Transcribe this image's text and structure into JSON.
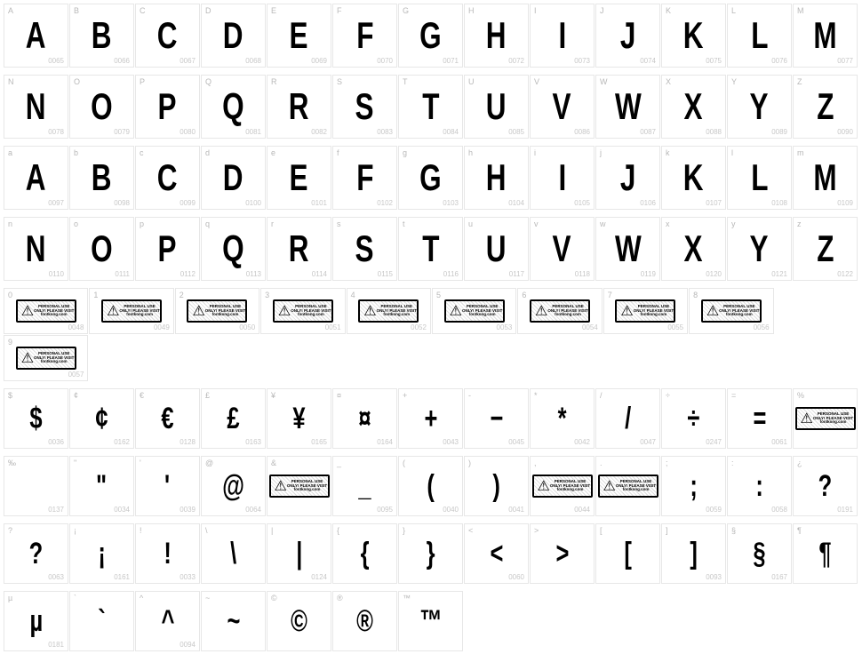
{
  "layout": {
    "cell_border": "#e7e7e7",
    "bg": "#ffffff",
    "key_color": "#b8b8b8",
    "code_color": "#c8c8c8",
    "glyph_color": "#000000"
  },
  "warn_text": "PERSONAL USE ONLY! PLEASE VISIT fontkong.com",
  "rows": [
    {
      "class": "row13",
      "glyph_class": "glyph-big",
      "cells": [
        {
          "key": "A",
          "glyph": "A",
          "code": "0065"
        },
        {
          "key": "B",
          "glyph": "B",
          "code": "0066"
        },
        {
          "key": "C",
          "glyph": "C",
          "code": "0067"
        },
        {
          "key": "D",
          "glyph": "D",
          "code": "0068"
        },
        {
          "key": "E",
          "glyph": "E",
          "code": "0069"
        },
        {
          "key": "F",
          "glyph": "F",
          "code": "0070"
        },
        {
          "key": "G",
          "glyph": "G",
          "code": "0071"
        },
        {
          "key": "H",
          "glyph": "H",
          "code": "0072"
        },
        {
          "key": "I",
          "glyph": "I",
          "code": "0073"
        },
        {
          "key": "J",
          "glyph": "J",
          "code": "0074"
        },
        {
          "key": "K",
          "glyph": "K",
          "code": "0075"
        },
        {
          "key": "L",
          "glyph": "L",
          "code": "0076"
        },
        {
          "key": "M",
          "glyph": "M",
          "code": "0077"
        }
      ]
    },
    {
      "class": "row13",
      "glyph_class": "glyph-big",
      "cells": [
        {
          "key": "N",
          "glyph": "N",
          "code": "0078"
        },
        {
          "key": "O",
          "glyph": "O",
          "code": "0079"
        },
        {
          "key": "P",
          "glyph": "P",
          "code": "0080"
        },
        {
          "key": "Q",
          "glyph": "Q",
          "code": "0081"
        },
        {
          "key": "R",
          "glyph": "R",
          "code": "0082"
        },
        {
          "key": "S",
          "glyph": "S",
          "code": "0083"
        },
        {
          "key": "T",
          "glyph": "T",
          "code": "0084"
        },
        {
          "key": "U",
          "glyph": "U",
          "code": "0085"
        },
        {
          "key": "V",
          "glyph": "V",
          "code": "0086"
        },
        {
          "key": "W",
          "glyph": "W",
          "code": "0087"
        },
        {
          "key": "X",
          "glyph": "X",
          "code": "0088"
        },
        {
          "key": "Y",
          "glyph": "Y",
          "code": "0089"
        },
        {
          "key": "Z",
          "glyph": "Z",
          "code": "0090"
        }
      ]
    },
    {
      "class": "row13",
      "glyph_class": "glyph-big",
      "cells": [
        {
          "key": "a",
          "glyph": "A",
          "code": "0097"
        },
        {
          "key": "b",
          "glyph": "B",
          "code": "0098"
        },
        {
          "key": "c",
          "glyph": "C",
          "code": "0099"
        },
        {
          "key": "d",
          "glyph": "D",
          "code": "0100"
        },
        {
          "key": "e",
          "glyph": "E",
          "code": "0101"
        },
        {
          "key": "f",
          "glyph": "F",
          "code": "0102"
        },
        {
          "key": "g",
          "glyph": "G",
          "code": "0103"
        },
        {
          "key": "h",
          "glyph": "H",
          "code": "0104"
        },
        {
          "key": "i",
          "glyph": "I",
          "code": "0105"
        },
        {
          "key": "j",
          "glyph": "J",
          "code": "0106"
        },
        {
          "key": "k",
          "glyph": "K",
          "code": "0107"
        },
        {
          "key": "l",
          "glyph": "L",
          "code": "0108"
        },
        {
          "key": "m",
          "glyph": "M",
          "code": "0109"
        }
      ]
    },
    {
      "class": "row13",
      "glyph_class": "glyph-big",
      "cells": [
        {
          "key": "n",
          "glyph": "N",
          "code": "0110"
        },
        {
          "key": "o",
          "glyph": "O",
          "code": "0111"
        },
        {
          "key": "p",
          "glyph": "P",
          "code": "0112"
        },
        {
          "key": "q",
          "glyph": "Q",
          "code": "0113"
        },
        {
          "key": "r",
          "glyph": "R",
          "code": "0114"
        },
        {
          "key": "s",
          "glyph": "S",
          "code": "0115"
        },
        {
          "key": "t",
          "glyph": "T",
          "code": "0116"
        },
        {
          "key": "u",
          "glyph": "U",
          "code": "0117"
        },
        {
          "key": "v",
          "glyph": "V",
          "code": "0118"
        },
        {
          "key": "w",
          "glyph": "W",
          "code": "0119"
        },
        {
          "key": "x",
          "glyph": "X",
          "code": "0120"
        },
        {
          "key": "y",
          "glyph": "Y",
          "code": "0121"
        },
        {
          "key": "z",
          "glyph": "Z",
          "code": "0122"
        }
      ]
    },
    {
      "class": "row10",
      "glyph_class": "glyph-med",
      "cells": [
        {
          "key": "0",
          "warn": true,
          "code": "0048"
        },
        {
          "key": "1",
          "warn": true,
          "code": "0049"
        },
        {
          "key": "2",
          "warn": true,
          "code": "0050"
        },
        {
          "key": "3",
          "warn": true,
          "code": "0051"
        },
        {
          "key": "4",
          "warn": true,
          "code": "0052"
        },
        {
          "key": "5",
          "warn": true,
          "code": "0053"
        },
        {
          "key": "6",
          "warn": true,
          "code": "0054"
        },
        {
          "key": "7",
          "warn": true,
          "code": "0055"
        },
        {
          "key": "8",
          "warn": true,
          "code": "0056"
        },
        {
          "key": "9",
          "warn": true,
          "code": "0057"
        }
      ]
    },
    {
      "class": "row-sym",
      "glyph_class": "glyph-sym",
      "cells": [
        {
          "key": "$",
          "glyph": "$",
          "code": "0036"
        },
        {
          "key": "¢",
          "glyph": "¢",
          "code": "0162"
        },
        {
          "key": "€",
          "glyph": "€",
          "code": "0128"
        },
        {
          "key": "£",
          "glyph": "£",
          "code": "0163"
        },
        {
          "key": "¥",
          "glyph": "¥",
          "code": "0165"
        },
        {
          "key": "¤",
          "glyph": "¤",
          "code": "0164"
        },
        {
          "key": "+",
          "glyph": "+",
          "code": "0043"
        },
        {
          "key": "-",
          "glyph": "−",
          "code": "0045"
        },
        {
          "key": "*",
          "glyph": "*",
          "code": "0042"
        },
        {
          "key": "/",
          "glyph": "/",
          "code": "0047"
        },
        {
          "key": "÷",
          "glyph": "÷",
          "code": "0247"
        },
        {
          "key": "=",
          "glyph": "=",
          "code": "0061"
        },
        {
          "key": "%",
          "warn": true,
          "code": ""
        }
      ]
    },
    {
      "class": "row-sym",
      "glyph_class": "glyph-sym",
      "cells": [
        {
          "key": "‰",
          "glyph": "",
          "code": "0137"
        },
        {
          "key": "\"",
          "glyph": "\"",
          "code": "0034"
        },
        {
          "key": "'",
          "glyph": "'",
          "code": "0039"
        },
        {
          "key": "@",
          "glyph": "@",
          "code": "0064"
        },
        {
          "key": "&",
          "warn": true,
          "code": ""
        },
        {
          "key": "_",
          "glyph": "_",
          "code": "0095"
        },
        {
          "key": "(",
          "glyph": "(",
          "code": "0040"
        },
        {
          "key": ")",
          "glyph": ")",
          "code": "0041"
        },
        {
          "key": ",",
          "warn": true,
          "code": "0044"
        },
        {
          "key": ".",
          "warn": true,
          "code": ""
        },
        {
          "key": ";",
          "glyph": ";",
          "code": "0059"
        },
        {
          "key": ":",
          "glyph": ":",
          "code": "0058"
        },
        {
          "key": "¿",
          "glyph": "?",
          "code": "0191"
        }
      ]
    },
    {
      "class": "row-sym2",
      "glyph_class": "glyph-sym",
      "cells": [
        {
          "key": "?",
          "glyph": "?",
          "code": "0063"
        },
        {
          "key": "¡",
          "glyph": "¡",
          "code": "0161"
        },
        {
          "key": "!",
          "glyph": "!",
          "code": "0033"
        },
        {
          "key": "\\",
          "glyph": "\\",
          "code": ""
        },
        {
          "key": "|",
          "glyph": "|",
          "code": "0124"
        },
        {
          "key": "{",
          "glyph": "{",
          "code": ""
        },
        {
          "key": "}",
          "glyph": "}",
          "code": ""
        },
        {
          "key": "<",
          "glyph": "<",
          "code": "0060"
        },
        {
          "key": ">",
          "glyph": ">",
          "code": ""
        },
        {
          "key": "[",
          "glyph": "[",
          "code": ""
        },
        {
          "key": "]",
          "glyph": "]",
          "code": "0093"
        },
        {
          "key": "§",
          "glyph": "§",
          "code": "0167"
        },
        {
          "key": "¶",
          "glyph": "¶",
          "code": ""
        }
      ]
    },
    {
      "class": "row-last",
      "glyph_class": "glyph-sym",
      "cells": [
        {
          "key": "µ",
          "glyph": "µ",
          "code": "0181"
        },
        {
          "key": "`",
          "glyph": "`",
          "code": ""
        },
        {
          "key": "^",
          "glyph": "^",
          "code": "0094"
        },
        {
          "key": "~",
          "glyph": "~",
          "code": ""
        },
        {
          "key": "©",
          "glyph": "©",
          "code": ""
        },
        {
          "key": "®",
          "glyph": "®",
          "code": ""
        },
        {
          "key": "™",
          "glyph": "™",
          "code": ""
        }
      ]
    }
  ]
}
